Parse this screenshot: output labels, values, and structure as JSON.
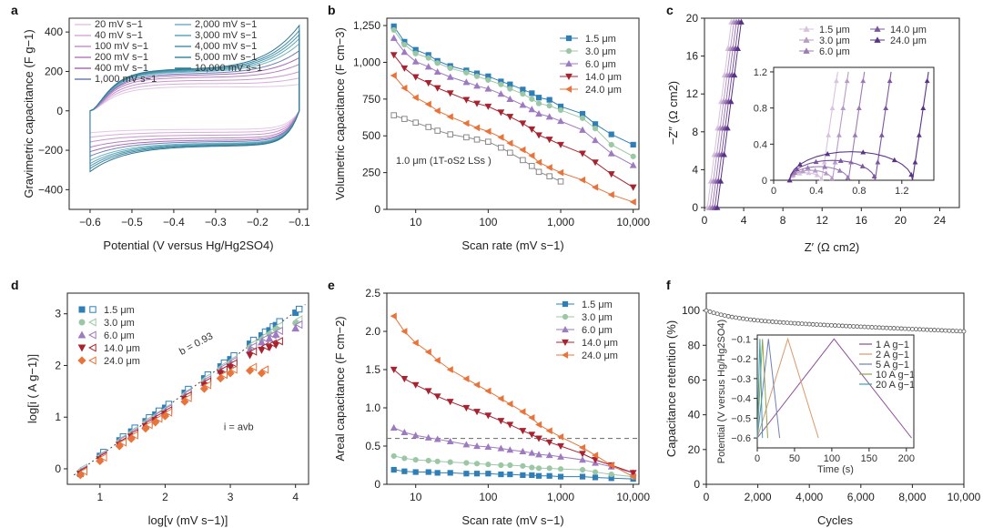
{
  "panels": [
    "a",
    "b",
    "c",
    "d",
    "e",
    "f"
  ],
  "chart_data": [
    {
      "id": "a",
      "type": "line",
      "xlabel": "Potential (V versus Hg/Hg2SO4)",
      "ylabel": "Gravimetric capacitance (F g−1)",
      "xlim": [
        -0.65,
        -0.08
      ],
      "ylim": [
        -500,
        470
      ],
      "xticks": [
        -0.6,
        -0.5,
        -0.4,
        -0.3,
        -0.2,
        -0.1
      ],
      "xticklabels": [
        "−0.6",
        "−0.5",
        "−0.4",
        "−0.3",
        "−0.2",
        "−0.1"
      ],
      "yticks": [
        -400,
        -200,
        0,
        200,
        400
      ],
      "yticklabels": [
        "−400",
        "−200",
        "0",
        "200",
        "400"
      ],
      "legend": [
        "20 mV s−1",
        "40 mV s−1",
        "100 mV s−1",
        "200 mV s−1",
        "400 mV s−1",
        "1,000 mV s−1",
        "2,000 mV s−1",
        "3,000 mV s−1",
        "4,000 mV s−1",
        "5,000 mV s−1",
        "10,000 mV s−1"
      ],
      "series": [
        {
          "name": "20 mV s−1",
          "amp": 130,
          "tail": 30,
          "color": "#e3c6e6"
        },
        {
          "name": "40 mV s−1",
          "amp": 150,
          "tail": 45,
          "color": "#d7acdb"
        },
        {
          "name": "100 mV s−1",
          "amp": 170,
          "tail": 60,
          "color": "#c894cf"
        },
        {
          "name": "200 mV s−1",
          "amp": 190,
          "tail": 80,
          "color": "#b87ec2"
        },
        {
          "name": "400 mV s−1",
          "amp": 205,
          "tail": 100,
          "color": "#a66db5"
        },
        {
          "name": "1,000 mV s−1",
          "amp": 215,
          "tail": 125,
          "color": "#6e7fb8"
        },
        {
          "name": "2,000 mV s−1",
          "amp": 225,
          "tail": 150,
          "color": "#6fb3c3"
        },
        {
          "name": "3,000 mV s−1",
          "amp": 230,
          "tail": 170,
          "color": "#5aa6b8"
        },
        {
          "name": "4,000 mV s−1",
          "amp": 235,
          "tail": 185,
          "color": "#4b96ad"
        },
        {
          "name": "5,000 mV s−1",
          "amp": 240,
          "tail": 200,
          "color": "#3e88a2"
        },
        {
          "name": "10,000 mV s−1",
          "amp": 245,
          "tail": 220,
          "color": "#2f7894"
        }
      ]
    },
    {
      "id": "b",
      "type": "line",
      "xlabel": "Scan rate (mV s−1)",
      "ylabel": "Volumetric capacitance (F cm−3)",
      "xscale": "log",
      "xlim": [
        4,
        12000
      ],
      "ylim": [
        0,
        1300
      ],
      "xticks": [
        10,
        100,
        1000,
        10000
      ],
      "xticklabels": [
        "10",
        "100",
        "1,000",
        "10,000"
      ],
      "yticks": [
        0,
        250,
        500,
        750,
        1000,
        1250
      ],
      "yticklabels": [
        "0",
        "250",
        "500",
        "750",
        "1,000",
        "1,250"
      ],
      "annotation": "1.0 μm (1T-oS2 LSs )",
      "x": [
        5,
        7,
        10,
        15,
        20,
        30,
        50,
        70,
        100,
        150,
        200,
        300,
        400,
        500,
        700,
        1000,
        2000,
        3000,
        5000,
        10000
      ],
      "series": [
        {
          "name": "1.5 μm",
          "marker": "square",
          "color": "#2e7fb8",
          "values": [
            1245,
            1140,
            1085,
            1050,
            1010,
            975,
            945,
            925,
            905,
            870,
            850,
            815,
            790,
            760,
            745,
            700,
            650,
            580,
            510,
            440
          ]
        },
        {
          "name": "3.0 μm",
          "marker": "circle",
          "color": "#9cc7a4",
          "values": [
            1220,
            1120,
            1060,
            1030,
            995,
            960,
            930,
            905,
            880,
            850,
            820,
            785,
            750,
            720,
            705,
            675,
            620,
            550,
            440,
            360
          ]
        },
        {
          "name": "6.0 μm",
          "marker": "triangle-up",
          "color": "#9d7ac2",
          "values": [
            1165,
            1070,
            1005,
            970,
            935,
            900,
            865,
            840,
            820,
            785,
            750,
            710,
            680,
            650,
            630,
            600,
            540,
            470,
            380,
            300
          ]
        },
        {
          "name": "14.0 μm",
          "marker": "triangle-down",
          "color": "#a8232f",
          "values": [
            1050,
            960,
            900,
            860,
            825,
            790,
            745,
            720,
            700,
            660,
            630,
            585,
            545,
            505,
            475,
            440,
            380,
            320,
            240,
            150
          ]
        },
        {
          "name": "24.0 μm",
          "marker": "triangle-left",
          "color": "#e8743b",
          "values": [
            910,
            825,
            760,
            715,
            670,
            630,
            585,
            555,
            530,
            490,
            450,
            405,
            365,
            320,
            285,
            250,
            200,
            150,
            100,
            50
          ]
        },
        {
          "name": "1.0 μm",
          "marker": "square-open",
          "color": "#8a8a8a",
          "values": [
            640,
            615,
            590,
            560,
            535,
            510,
            490,
            475,
            460,
            420,
            385,
            335,
            295,
            255,
            225,
            190,
            null,
            null,
            null,
            null
          ]
        }
      ]
    },
    {
      "id": "c",
      "type": "scatter",
      "xlabel": "Z′ (Ω cm2)",
      "ylabel": "−Z″ (Ω cm2)",
      "xlim": [
        0,
        26
      ],
      "ylim": [
        0,
        20
      ],
      "xticks": [
        0,
        4,
        8,
        12,
        16,
        20,
        24
      ],
      "xticklabels": [
        "0",
        "4",
        "8",
        "12",
        "16",
        "20",
        "24"
      ],
      "yticks": [
        0,
        4,
        8,
        12,
        16,
        20
      ],
      "yticklabels": [
        "0",
        "4",
        "8",
        "12",
        "16",
        "20"
      ],
      "inset": {
        "xlim": [
          0,
          1.5
        ],
        "ylim": [
          0,
          1.25
        ],
        "xticks": [
          0,
          0.4,
          0.8,
          1.2
        ],
        "xticklabels": [
          "0",
          "0.4",
          "0.8",
          "1.2"
        ],
        "yticks": [
          0,
          0.4,
          0.8,
          1.2
        ],
        "yticklabels": [
          "0",
          "0.4",
          "0.8",
          "1.2"
        ]
      },
      "series": [
        {
          "name": "1.5 μm",
          "color": "#d9c2df",
          "rs": 0.15,
          "arc_end": 0.45,
          "tail_slope": 8
        },
        {
          "name": "3.0 μm",
          "color": "#b79bc7",
          "rs": 0.15,
          "arc_end": 0.55,
          "tail_slope": 8
        },
        {
          "name": "6.0 μm",
          "color": "#9c7ab5",
          "rs": 0.15,
          "arc_end": 0.7,
          "tail_slope": 8
        },
        {
          "name": "14.0 μm",
          "color": "#7c55a0",
          "rs": 0.15,
          "arc_end": 0.95,
          "tail_slope": 8
        },
        {
          "name": "24.0 μm",
          "color": "#5a3387",
          "rs": 0.15,
          "arc_end": 1.3,
          "tail_slope": 8
        }
      ]
    },
    {
      "id": "d",
      "type": "scatter",
      "xlabel": "log[v (mV s−1)]",
      "ylabel": "log[i ( A g−1)]",
      "xlim": [
        0.5,
        4.2
      ],
      "ylim": [
        -0.3,
        3.4
      ],
      "xticks": [
        1,
        2,
        3,
        4
      ],
      "xticklabels": [
        "1",
        "2",
        "3",
        "4"
      ],
      "yticks": [
        0,
        1,
        2,
        3
      ],
      "yticklabels": [
        "0",
        "1",
        "2",
        "3"
      ],
      "fit_label": "b = 0.93",
      "equation": "i = avb",
      "fit_line": {
        "slope": 0.93,
        "intercept": -0.68
      },
      "x": [
        0.7,
        1.0,
        1.3,
        1.48,
        1.7,
        1.85,
        2.0,
        2.3,
        2.6,
        2.85,
        3.0,
        3.3,
        3.48,
        3.6,
        3.7,
        4.0
      ],
      "series": [
        {
          "name": "1.5 μm",
          "color": "#2e7fb8",
          "marker": "square",
          "values": [
            -0.1,
            0.25,
            0.55,
            0.72,
            0.92,
            1.05,
            1.18,
            1.47,
            1.75,
            1.98,
            2.12,
            2.42,
            2.58,
            2.68,
            2.78,
            3.02
          ]
        },
        {
          "name": "3.0 μm",
          "color": "#9cc7a4",
          "marker": "circle",
          "values": [
            -0.05,
            0.22,
            0.52,
            0.68,
            0.88,
            1.0,
            1.12,
            1.42,
            1.7,
            1.93,
            2.05,
            2.35,
            2.5,
            2.6,
            2.7,
            2.82
          ]
        },
        {
          "name": "6.0 μm",
          "color": "#9d7ac2",
          "marker": "triangle-up",
          "values": [
            -0.08,
            0.2,
            0.5,
            0.65,
            0.85,
            0.98,
            1.1,
            1.4,
            1.66,
            1.9,
            2.02,
            2.3,
            2.45,
            2.52,
            2.6,
            2.72
          ]
        },
        {
          "name": "14.0 μm",
          "color": "#a8232f",
          "marker": "triangle-down",
          "values": [
            -0.1,
            0.18,
            0.46,
            0.62,
            0.82,
            0.94,
            1.06,
            1.35,
            1.62,
            1.85,
            1.97,
            2.2,
            2.3,
            2.35,
            2.4,
            null
          ]
        },
        {
          "name": "24.0 μm",
          "color": "#e8743b",
          "marker": "diamond",
          "values": [
            -0.12,
            0.15,
            0.44,
            0.58,
            0.78,
            0.9,
            1.02,
            1.3,
            1.55,
            1.75,
            1.85,
            1.9,
            1.85,
            null,
            null,
            null
          ]
        }
      ]
    },
    {
      "id": "e",
      "type": "line",
      "xlabel": "Scan rate (mV s−1)",
      "ylabel": "Areal capacitance (F cm−2)",
      "xscale": "log",
      "xlim": [
        4,
        12000
      ],
      "ylim": [
        0,
        2.5
      ],
      "xticks": [
        10,
        100,
        1000,
        10000
      ],
      "xticklabels": [
        "10",
        "100",
        "1,000",
        "10,000"
      ],
      "yticks": [
        0,
        0.5,
        1.0,
        1.5,
        2.0,
        2.5
      ],
      "yticklabels": [
        "0",
        "0.5",
        "1.0",
        "1.5",
        "2.0",
        "2.5"
      ],
      "reference_line": 0.6,
      "x": [
        5,
        7,
        10,
        15,
        20,
        30,
        50,
        70,
        100,
        150,
        200,
        300,
        400,
        500,
        700,
        1000,
        2000,
        3000,
        5000,
        10000
      ],
      "series": [
        {
          "name": "1.5 μm",
          "marker": "square",
          "color": "#2e7fb8",
          "values": [
            0.19,
            0.17,
            0.16,
            0.16,
            0.15,
            0.15,
            0.14,
            0.14,
            0.14,
            0.13,
            0.13,
            0.12,
            0.12,
            0.11,
            0.11,
            0.1,
            0.1,
            0.09,
            0.08,
            0.07
          ]
        },
        {
          "name": "3.0 μm",
          "marker": "circle",
          "color": "#9cc7a4",
          "values": [
            0.37,
            0.34,
            0.32,
            0.31,
            0.3,
            0.29,
            0.28,
            0.27,
            0.26,
            0.25,
            0.25,
            0.24,
            0.22,
            0.21,
            0.21,
            0.2,
            0.19,
            0.16,
            0.13,
            0.1
          ]
        },
        {
          "name": "6.0 μm",
          "marker": "triangle-up",
          "color": "#9d7ac2",
          "values": [
            0.74,
            0.68,
            0.64,
            0.61,
            0.59,
            0.56,
            0.52,
            0.5,
            0.49,
            0.47,
            0.45,
            0.43,
            0.41,
            0.39,
            0.38,
            0.36,
            0.32,
            0.28,
            0.23,
            0.15
          ]
        },
        {
          "name": "14.0 μm",
          "marker": "triangle-down",
          "color": "#a8232f",
          "values": [
            1.5,
            1.38,
            1.3,
            1.22,
            1.15,
            1.08,
            1.0,
            0.95,
            0.9,
            0.83,
            0.78,
            0.7,
            0.65,
            0.6,
            0.55,
            0.5,
            0.4,
            0.32,
            0.25,
            0.15
          ]
        },
        {
          "name": "24.0 μm",
          "marker": "triangle-left",
          "color": "#e8743b",
          "values": [
            2.2,
            2.0,
            1.85,
            1.73,
            1.62,
            1.5,
            1.38,
            1.3,
            1.22,
            1.12,
            1.05,
            0.95,
            0.87,
            0.78,
            0.7,
            0.62,
            0.48,
            0.38,
            0.25,
            0.1
          ]
        }
      ]
    },
    {
      "id": "f",
      "type": "line",
      "xlabel": "Cycles",
      "ylabel": "Capacitance retention (%)",
      "xlim": [
        0,
        10000
      ],
      "ylim": [
        0,
        110
      ],
      "xticks": [
        0,
        2000,
        4000,
        6000,
        8000,
        10000
      ],
      "xticklabels": [
        "0",
        "2,000",
        "4,000",
        "6,000",
        "8,000",
        "10,000"
      ],
      "yticks": [
        0,
        20,
        40,
        60,
        80,
        100
      ],
      "yticklabels": [
        "0",
        "20",
        "40",
        "60",
        "80",
        "100"
      ],
      "retention": {
        "start": 100,
        "end": 88
      },
      "inset": {
        "xlabel": "Time (s)",
        "ylabel": "Potential (V versus Hg/Hg2SO4)",
        "xlim": [
          0,
          210
        ],
        "ylim": [
          -0.65,
          -0.08
        ],
        "xticks": [
          0,
          50,
          100,
          150,
          200
        ],
        "xticklabels": [
          "0",
          "50",
          "100",
          "150",
          "200"
        ],
        "yticks": [
          -0.1,
          -0.2,
          -0.3,
          -0.4,
          -0.5,
          -0.6
        ],
        "yticklabels": [
          "−0.1",
          "−0.2",
          "−0.3",
          "−0.4",
          "−0.5",
          "−0.6"
        ],
        "legend": [
          "1 A g−1",
          "2 A g−1",
          "5 A g−1",
          "10 A g−1",
          "20 A g−1"
        ],
        "series": [
          {
            "name": "1 A g−1",
            "color": "#8e4a9a",
            "tpeak": 103,
            "tend": 207
          },
          {
            "name": "2 A g−1",
            "color": "#d89a6a",
            "tpeak": 41,
            "tend": 82
          },
          {
            "name": "5 A g−1",
            "color": "#6e7fb8",
            "tpeak": 15,
            "tend": 30
          },
          {
            "name": "10 A g−1",
            "color": "#8fa44e",
            "tpeak": 7,
            "tend": 14
          },
          {
            "name": "20 A g−1",
            "color": "#3aa0b0",
            "tpeak": 3.5,
            "tend": 7
          }
        ]
      }
    }
  ]
}
